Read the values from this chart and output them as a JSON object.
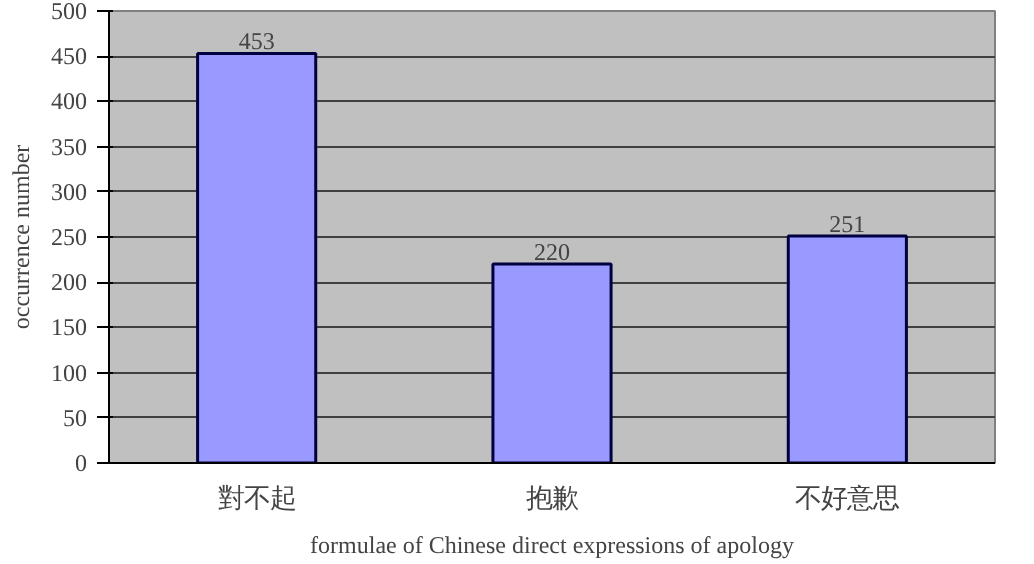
{
  "chart_data": {
    "type": "bar",
    "xlabel": "formulae of Chinese direct expressions of apology",
    "ylabel": "occurrence number",
    "categories": [
      "對不起",
      "抱歉",
      "不好意思"
    ],
    "values": [
      453,
      220,
      251
    ],
    "color": "#9999ff",
    "ylim": [
      0,
      500
    ],
    "yticks": [
      0,
      50,
      100,
      150,
      200,
      250,
      300,
      350,
      400,
      450,
      500
    ],
    "grid": "y",
    "data_labels": true
  }
}
